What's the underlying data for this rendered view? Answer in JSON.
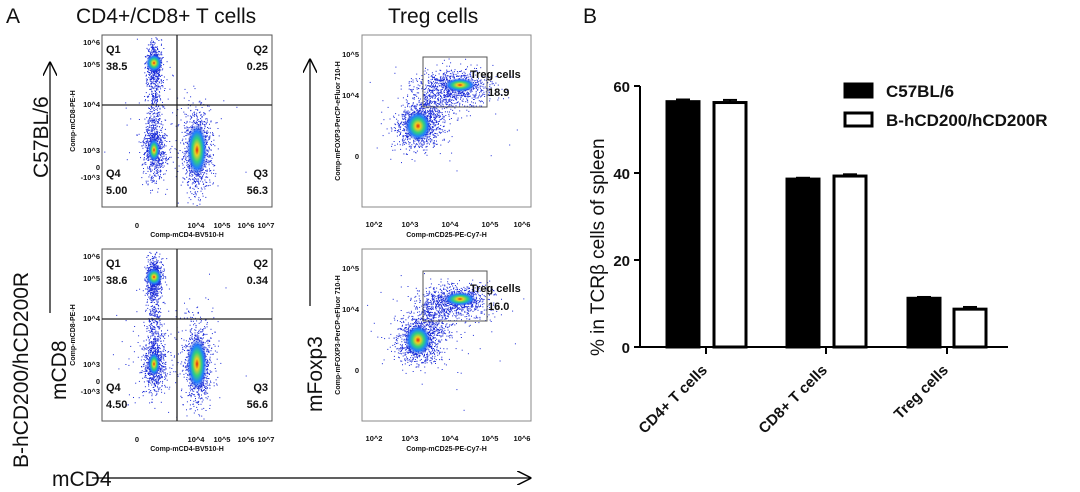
{
  "panel_a": {
    "label": "A",
    "title_left": "CD4+/CD8+ T cells",
    "title_right": "Treg cells",
    "row_labels": [
      "C57BL/6",
      "B-hCD200/hCD200R"
    ],
    "axis_mcd8": "mCD8",
    "axis_mfoxp3": "mFoxp3",
    "axis_mcd4": "mCD4",
    "cd4cd8_plot": {
      "xlabel": "Comp-mCD4-BV510-H",
      "ylabel": "Comp-mCD8-PE-H",
      "xticks": [
        "0",
        "10^4",
        "10^5",
        "10^6",
        "10^7"
      ],
      "yticks": [
        "10^6",
        "10^5",
        "10^4",
        "10^3",
        "0",
        "-10^3"
      ]
    },
    "treg_plot": {
      "xlabel": "Comp-mCD25-PE-Cy7-H",
      "ylabel": "Comp-mFOXP3-PerCP-eFluor 710-H",
      "xticks": [
        "10^2",
        "10^3",
        "10^4",
        "10^5",
        "10^6"
      ],
      "yticks": [
        "10^5",
        "10^4",
        "0"
      ],
      "gate_label": "Treg cells"
    },
    "rows": [
      {
        "quadrants": {
          "Q1": "38.5",
          "Q2": "0.25",
          "Q3": "56.3",
          "Q4": "5.00"
        },
        "treg": "18.9"
      },
      {
        "quadrants": {
          "Q1": "38.6",
          "Q2": "0.34",
          "Q3": "56.6",
          "Q4": "4.50"
        },
        "treg": "16.0"
      }
    ]
  },
  "chart_data": {
    "label": "B",
    "type": "bar",
    "categories": [
      "CD4+ T cells",
      "CD8+ T cells",
      "Treg cells"
    ],
    "series": [
      {
        "name": "C57BL/6",
        "values": [
          56.4,
          38.6,
          11.2
        ],
        "errors": [
          0.5,
          0.3,
          0.3
        ],
        "fill": "#000000"
      },
      {
        "name": "B-hCD200/hCD200R",
        "values": [
          56.2,
          39.3,
          8.7
        ],
        "errors": [
          0.6,
          0.4,
          0.5
        ],
        "fill": "#ffffff"
      }
    ],
    "ylabel": "% in TCRβ cells of spleen",
    "xlabel": "",
    "ylim": [
      0,
      60
    ],
    "yticks": [
      "0",
      "20",
      "40",
      "60"
    ],
    "legend_position": "top-right",
    "grid": false
  }
}
